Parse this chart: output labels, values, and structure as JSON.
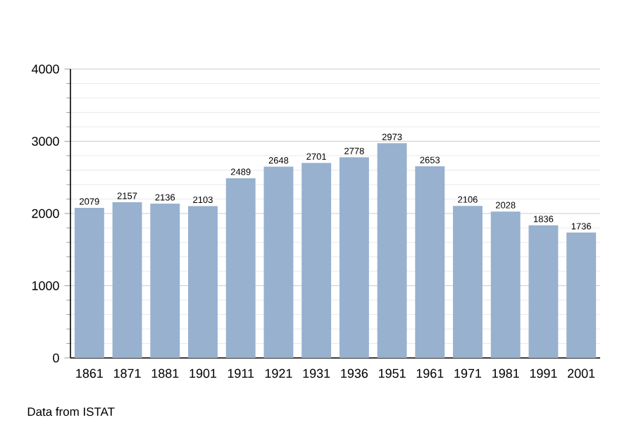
{
  "chart_data": {
    "type": "bar",
    "categories": [
      "1861",
      "1871",
      "1881",
      "1901",
      "1911",
      "1921",
      "1931",
      "1936",
      "1951",
      "1961",
      "1971",
      "1981",
      "1991",
      "2001"
    ],
    "values": [
      2079,
      2157,
      2136,
      2103,
      2489,
      2648,
      2701,
      2778,
      2973,
      2653,
      2106,
      2028,
      1836,
      1736
    ],
    "color": "#97b1cf",
    "ylim": [
      0,
      4000
    ],
    "yticks": [
      0,
      1000,
      2000,
      3000,
      4000
    ],
    "grid": "y",
    "data_labels": true,
    "annotations": [
      "Data from ISTAT"
    ]
  }
}
